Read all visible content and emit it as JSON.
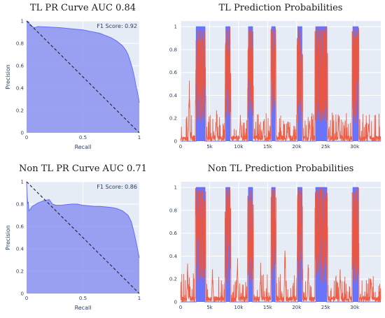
{
  "chart_data": [
    {
      "type": "area",
      "title": "TL PR Curve AUC 0.84",
      "xlabel": "Recall",
      "ylabel": "Precision",
      "xlim": [
        0,
        1
      ],
      "ylim": [
        0,
        1
      ],
      "x_ticks": [
        "0",
        "0.5",
        "1"
      ],
      "y_ticks": [
        "0",
        "0.2",
        "0.4",
        "0.6",
        "0.8",
        "1"
      ],
      "annotation": "F1 Score: 0.92",
      "grid": true,
      "fill_color": "#8c93f0",
      "line_color": "#636efa",
      "baseline_color": "#2a2a3a",
      "series": [
        {
          "x": [
            0,
            0.02,
            0.03,
            0.05,
            0.07,
            0.1,
            0.2,
            0.3,
            0.4,
            0.5,
            0.55,
            0.6,
            0.65,
            0.7,
            0.75,
            0.8,
            0.85,
            0.88,
            0.9,
            0.92,
            0.94,
            0.96,
            0.97,
            0.98,
            0.99,
            1.0
          ],
          "y": [
            1.0,
            0.99,
            0.96,
            0.95,
            0.94,
            0.95,
            0.945,
            0.94,
            0.93,
            0.92,
            0.91,
            0.9,
            0.89,
            0.87,
            0.85,
            0.82,
            0.78,
            0.74,
            0.7,
            0.64,
            0.57,
            0.48,
            0.42,
            0.38,
            0.33,
            0.27
          ]
        },
        {
          "x": [
            0,
            1
          ],
          "y": [
            1,
            0
          ]
        }
      ]
    },
    {
      "type": "line",
      "title": "TL Prediction Probabilities",
      "xlim": [
        0,
        34500
      ],
      "ylim": [
        0,
        1.05
      ],
      "x_ticks": [
        0,
        5000,
        10000,
        15000,
        20000,
        25000,
        30000
      ],
      "x_tick_labels": [
        "0",
        "5k",
        "10k",
        "15k",
        "20k",
        "25k",
        "30k"
      ],
      "y_ticks": [
        0,
        0.2,
        0.4,
        0.6,
        0.8,
        1
      ],
      "y_tick_labels": [
        "0",
        "0.2",
        "0.4",
        "0.6",
        "0.8",
        "1"
      ],
      "grid": true,
      "series_colors": [
        "#636efa",
        "#ef553b"
      ],
      "label_intervals": [
        [
          2700,
          4200
        ],
        [
          7800,
          8500
        ],
        [
          11700,
          12400
        ],
        [
          15700,
          16300
        ],
        [
          20200,
          20900
        ],
        [
          23300,
          25200
        ],
        [
          29700,
          30600
        ]
      ],
      "pred_peaks": [
        [
          3400,
          0.98
        ],
        [
          3800,
          0.9
        ],
        [
          8200,
          0.95
        ],
        [
          12000,
          0.85
        ],
        [
          16000,
          0.9
        ],
        [
          20500,
          0.82
        ],
        [
          24000,
          0.95
        ],
        [
          24600,
          0.9
        ],
        [
          30100,
          0.95
        ],
        [
          1500,
          0.55
        ],
        [
          6200,
          0.3
        ],
        [
          10300,
          0.25
        ],
        [
          14300,
          0.22
        ],
        [
          18500,
          0.2
        ],
        [
          22200,
          0.25
        ],
        [
          27300,
          0.3
        ],
        [
          32400,
          0.2
        ]
      ]
    },
    {
      "type": "area",
      "title": "Non TL PR Curve AUC 0.71",
      "xlabel": "Recall",
      "ylabel": "Precision",
      "xlim": [
        0,
        1
      ],
      "ylim": [
        0,
        1
      ],
      "x_ticks": [
        "0",
        "0.5",
        "1"
      ],
      "y_ticks": [
        "0",
        "0.2",
        "0.4",
        "0.6",
        "0.8",
        "1"
      ],
      "annotation": "F1 Score: 0.86",
      "grid": true,
      "fill_color": "#8c93f0",
      "line_color": "#636efa",
      "baseline_color": "#2a2a3a",
      "series": [
        {
          "x": [
            0,
            0.005,
            0.01,
            0.015,
            0.02,
            0.03,
            0.05,
            0.1,
            0.15,
            0.2,
            0.23,
            0.26,
            0.3,
            0.35,
            0.4,
            0.45,
            0.5,
            0.55,
            0.6,
            0.65,
            0.7,
            0.75,
            0.8,
            0.85,
            0.9,
            0.93,
            0.95,
            0.97,
            0.98,
            0.99,
            1.0
          ],
          "y": [
            1.0,
            0.88,
            0.8,
            0.82,
            0.74,
            0.75,
            0.78,
            0.81,
            0.83,
            0.84,
            0.8,
            0.79,
            0.79,
            0.795,
            0.8,
            0.8,
            0.79,
            0.785,
            0.78,
            0.78,
            0.775,
            0.77,
            0.76,
            0.74,
            0.7,
            0.64,
            0.56,
            0.47,
            0.42,
            0.37,
            0.32
          ]
        },
        {
          "x": [
            0,
            1
          ],
          "y": [
            1,
            0
          ]
        }
      ]
    },
    {
      "type": "line",
      "title": "Non TL Prediction Probabilities",
      "xlim": [
        0,
        34500
      ],
      "ylim": [
        0,
        1.05
      ],
      "x_ticks": [
        0,
        5000,
        10000,
        15000,
        20000,
        25000,
        30000
      ],
      "x_tick_labels": [
        "0",
        "5k",
        "10k",
        "15k",
        "20k",
        "25k",
        "30k"
      ],
      "y_ticks": [
        0,
        0.2,
        0.4,
        0.6,
        0.8,
        1
      ],
      "y_tick_labels": [
        "0",
        "0.2",
        "0.4",
        "0.6",
        "0.8",
        "1"
      ],
      "grid": true,
      "series_colors": [
        "#636efa",
        "#ef553b"
      ],
      "label_intervals": [
        [
          2700,
          4200
        ],
        [
          7800,
          8500
        ],
        [
          11700,
          12400
        ],
        [
          15700,
          16300
        ],
        [
          20200,
          20900
        ],
        [
          23300,
          25200
        ],
        [
          29700,
          30600
        ]
      ],
      "pred_peaks": [
        [
          3300,
          0.95
        ],
        [
          3900,
          0.88
        ],
        [
          8100,
          0.9
        ],
        [
          12100,
          0.8
        ],
        [
          16000,
          0.88
        ],
        [
          20500,
          0.78
        ],
        [
          24100,
          0.92
        ],
        [
          24700,
          0.88
        ],
        [
          30200,
          0.9
        ],
        [
          1200,
          0.35
        ],
        [
          5500,
          0.3
        ],
        [
          9800,
          0.5
        ],
        [
          13800,
          0.35
        ],
        [
          18000,
          0.6
        ],
        [
          22000,
          0.45
        ],
        [
          27500,
          0.35
        ],
        [
          32800,
          0.3
        ]
      ]
    }
  ]
}
